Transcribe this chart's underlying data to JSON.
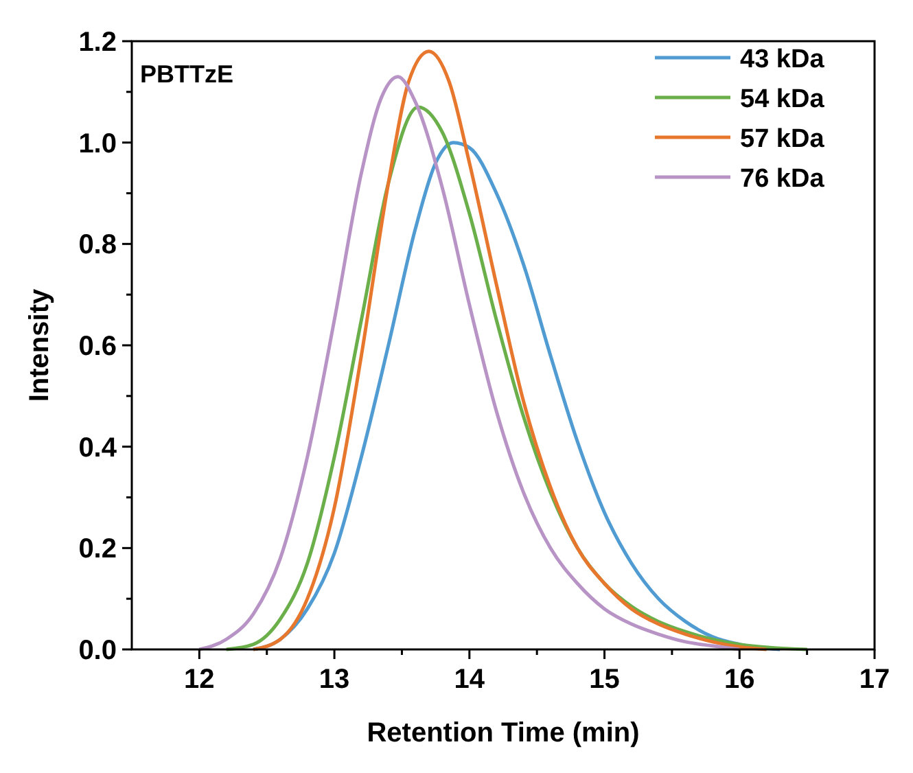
{
  "chart_data": {
    "type": "line",
    "xlabel": "Retention Time (min)",
    "ylabel": "Intensity",
    "annotations": [
      "PBTTzE"
    ],
    "xlim": [
      11.5,
      17
    ],
    "ylim": [
      0,
      1.2
    ],
    "xticks": [
      12,
      {
        "value": 12.5,
        "label": null
      },
      13,
      {
        "value": 13.5,
        "label": null
      },
      14,
      {
        "value": 14.5,
        "label": null
      },
      15,
      {
        "value": 15.5,
        "label": null
      },
      16,
      {
        "value": 16.5,
        "label": null
      },
      17
    ],
    "yticks": [
      {
        "value": 0,
        "label": "0.0"
      },
      {
        "value": 0.1,
        "label": null
      },
      0.2,
      {
        "value": 0.3,
        "label": null
      },
      0.4,
      {
        "value": 0.5,
        "label": null
      },
      0.6,
      {
        "value": 0.7,
        "label": null
      },
      0.8,
      {
        "value": 0.9,
        "label": null
      },
      {
        "value": 1,
        "label": "1.0"
      },
      {
        "value": 1.1,
        "label": null
      },
      1.2
    ],
    "grid": false,
    "legend": "top right",
    "marker": "none",
    "line_style": "solid",
    "series": [
      {
        "name": "43 kDa",
        "color": "#4f9bd2",
        "x": [
          12.4,
          12.6,
          12.8,
          13.0,
          13.2,
          13.4,
          13.6,
          13.75,
          13.88,
          14.0,
          14.2,
          14.4,
          14.6,
          14.8,
          15.0,
          15.2,
          15.4,
          15.6,
          15.8,
          16.0,
          16.3
        ],
        "values": [
          0,
          0.02,
          0.08,
          0.19,
          0.38,
          0.6,
          0.83,
          0.96,
          1.0,
          0.99,
          0.9,
          0.76,
          0.58,
          0.41,
          0.27,
          0.17,
          0.1,
          0.055,
          0.025,
          0.01,
          0
        ]
      },
      {
        "name": "54 kDa",
        "color": "#6aaf4a",
        "x": [
          12.2,
          12.4,
          12.6,
          12.8,
          13.0,
          13.2,
          13.4,
          13.62,
          13.8,
          14.0,
          14.2,
          14.4,
          14.6,
          14.8,
          15.0,
          15.2,
          15.4,
          15.6,
          15.8,
          16.0,
          16.5
        ],
        "values": [
          0,
          0.01,
          0.06,
          0.17,
          0.38,
          0.65,
          0.92,
          1.07,
          1.02,
          0.86,
          0.65,
          0.46,
          0.31,
          0.2,
          0.13,
          0.085,
          0.055,
          0.035,
          0.02,
          0.01,
          0
        ]
      },
      {
        "name": "57 kDa",
        "color": "#e8772e",
        "x": [
          12.4,
          12.6,
          12.8,
          13.0,
          13.2,
          13.4,
          13.55,
          13.7,
          13.85,
          14.0,
          14.2,
          14.4,
          14.6,
          14.8,
          15.0,
          15.2,
          15.4,
          15.6,
          15.8,
          16.0,
          16.2
        ],
        "values": [
          0,
          0.02,
          0.1,
          0.28,
          0.58,
          0.92,
          1.12,
          1.18,
          1.12,
          0.96,
          0.72,
          0.49,
          0.32,
          0.2,
          0.13,
          0.08,
          0.05,
          0.03,
          0.015,
          0.005,
          0
        ]
      },
      {
        "name": "76 kDa",
        "color": "#b894c6",
        "x": [
          12.0,
          12.2,
          12.4,
          12.6,
          12.8,
          13.0,
          13.2,
          13.35,
          13.47,
          13.6,
          13.8,
          14.0,
          14.2,
          14.4,
          14.6,
          14.8,
          15.0,
          15.2,
          15.4,
          15.6,
          15.8,
          16.0
        ],
        "values": [
          0,
          0.02,
          0.07,
          0.18,
          0.38,
          0.65,
          0.94,
          1.09,
          1.13,
          1.08,
          0.91,
          0.68,
          0.47,
          0.31,
          0.2,
          0.13,
          0.08,
          0.05,
          0.03,
          0.015,
          0.007,
          0
        ]
      }
    ]
  }
}
